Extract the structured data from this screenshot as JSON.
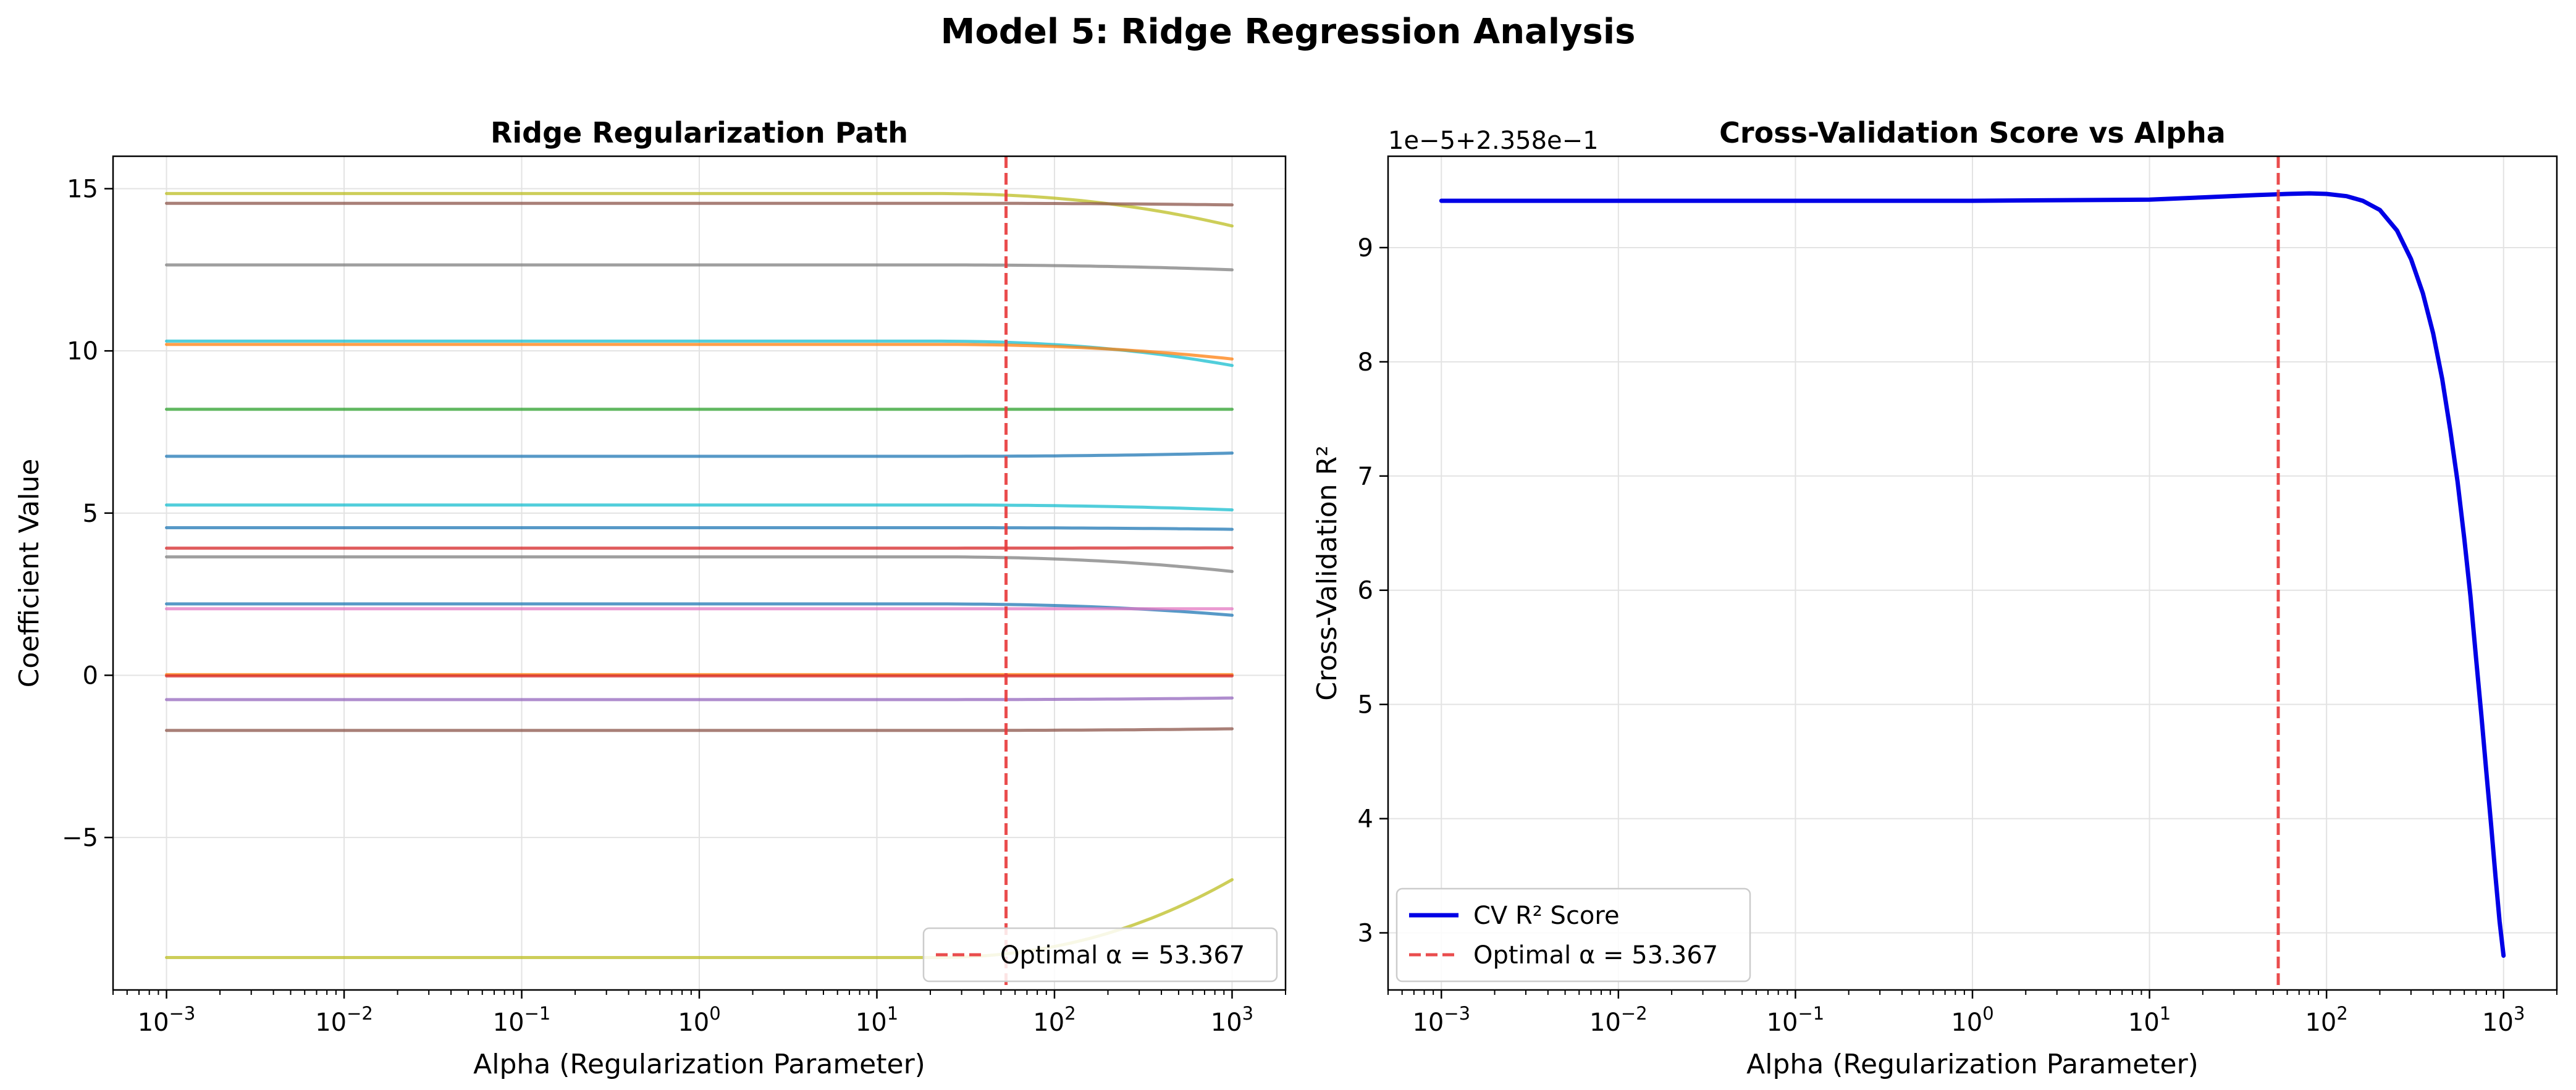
{
  "figure": {
    "title": "Model 5: Ridge Regression Analysis"
  },
  "chart_data": [
    {
      "type": "line",
      "title": "Ridge Regularization Path",
      "xlabel": "Alpha (Regularization Parameter)",
      "ylabel": "Coefficient Value",
      "xscale": "log",
      "xlim": [
        0.0005,
        2000
      ],
      "ylim": [
        -9.7,
        16.0
      ],
      "x_ticks": [
        0.001,
        0.01,
        0.1,
        1,
        10,
        100,
        1000
      ],
      "x_tick_labels": [
        {
          "base": "10",
          "exp": "−3"
        },
        {
          "base": "10",
          "exp": "−2"
        },
        {
          "base": "10",
          "exp": "−1"
        },
        {
          "base": "10",
          "exp": "0"
        },
        {
          "base": "10",
          "exp": "1"
        },
        {
          "base": "10",
          "exp": "2"
        },
        {
          "base": "10",
          "exp": "3"
        }
      ],
      "y_ticks": [
        -5,
        0,
        5,
        10,
        15
      ],
      "y_tick_labels": [
        "−5",
        "0",
        "5",
        "10",
        "15"
      ],
      "grid": true,
      "legend_position": "lower-right",
      "optimal_alpha": 53.367,
      "optimal_label": "Optimal α = 53.367",
      "optimal_color": "#e8383a",
      "alpha_range": [
        0.001,
        1000
      ],
      "series": [
        {
          "color": "#bcbd22",
          "start": 14.85,
          "end": 13.85
        },
        {
          "color": "#8c564b",
          "start": 14.55,
          "end": 14.5
        },
        {
          "color": "#7f7f7f",
          "start": 12.65,
          "end": 12.5
        },
        {
          "color": "#17becf",
          "start": 10.3,
          "end": 9.55
        },
        {
          "color": "#ff7f0e",
          "start": 10.2,
          "end": 9.75
        },
        {
          "color": "#2ca02c",
          "start": 8.2,
          "end": 8.2
        },
        {
          "color": "#1f77b4",
          "start": 6.75,
          "end": 6.85
        },
        {
          "color": "#17becf",
          "start": 5.25,
          "end": 5.1
        },
        {
          "color": "#1f77b4",
          "start": 4.55,
          "end": 4.5
        },
        {
          "color": "#d62728",
          "start": 3.92,
          "end": 3.93
        },
        {
          "color": "#7f7f7f",
          "start": 3.65,
          "end": 3.2
        },
        {
          "color": "#1f77b4",
          "start": 2.2,
          "end": 1.85
        },
        {
          "color": "#e377c2",
          "start": 2.05,
          "end": 2.05
        },
        {
          "color": "#ff7f0e",
          "start": 0.02,
          "end": 0.02
        },
        {
          "color": "#d62728",
          "start": -0.02,
          "end": -0.02
        },
        {
          "color": "#9467bd",
          "start": -0.75,
          "end": -0.7
        },
        {
          "color": "#8c564b",
          "start": -1.7,
          "end": -1.65
        },
        {
          "color": "#bcbd22",
          "start": -8.7,
          "end": -6.3
        }
      ]
    },
    {
      "type": "line",
      "title": "Cross-Validation Score vs Alpha",
      "xlabel": "Alpha (Regularization Parameter)",
      "ylabel": "Cross-Validation R²",
      "offset_text": "1e−5+2.358e−1",
      "xscale": "log",
      "xlim": [
        0.0005,
        2000
      ],
      "ylim": [
        2.5,
        9.8
      ],
      "x_ticks": [
        0.001,
        0.01,
        0.1,
        1,
        10,
        100,
        1000
      ],
      "x_tick_labels": [
        {
          "base": "10",
          "exp": "−3"
        },
        {
          "base": "10",
          "exp": "−2"
        },
        {
          "base": "10",
          "exp": "−1"
        },
        {
          "base": "10",
          "exp": "0"
        },
        {
          "base": "10",
          "exp": "1"
        },
        {
          "base": "10",
          "exp": "2"
        },
        {
          "base": "10",
          "exp": "3"
        }
      ],
      "y_ticks": [
        3,
        4,
        5,
        6,
        7,
        8,
        9
      ],
      "y_tick_labels": [
        "3",
        "4",
        "5",
        "6",
        "7",
        "8",
        "9"
      ],
      "grid": true,
      "legend_position": "lower-left",
      "optimal_alpha": 53.367,
      "optimal_label": "Optimal α = 53.367",
      "optimal_color": "#e8383a",
      "series": [
        {
          "name": "CV R² Score",
          "color": "#0000e6",
          "x": [
            0.001,
            0.01,
            0.1,
            1,
            10,
            20,
            40,
            60,
            80,
            100,
            130,
            160,
            200,
            250,
            300,
            350,
            400,
            450,
            500,
            550,
            600,
            650,
            700,
            750,
            800,
            850,
            900,
            950,
            1000
          ],
          "y": [
            9.41,
            9.41,
            9.41,
            9.41,
            9.42,
            9.44,
            9.46,
            9.47,
            9.475,
            9.47,
            9.45,
            9.41,
            9.33,
            9.15,
            8.9,
            8.6,
            8.25,
            7.85,
            7.4,
            6.95,
            6.45,
            5.95,
            5.4,
            4.9,
            4.4,
            3.95,
            3.5,
            3.1,
            2.8
          ]
        }
      ]
    }
  ]
}
